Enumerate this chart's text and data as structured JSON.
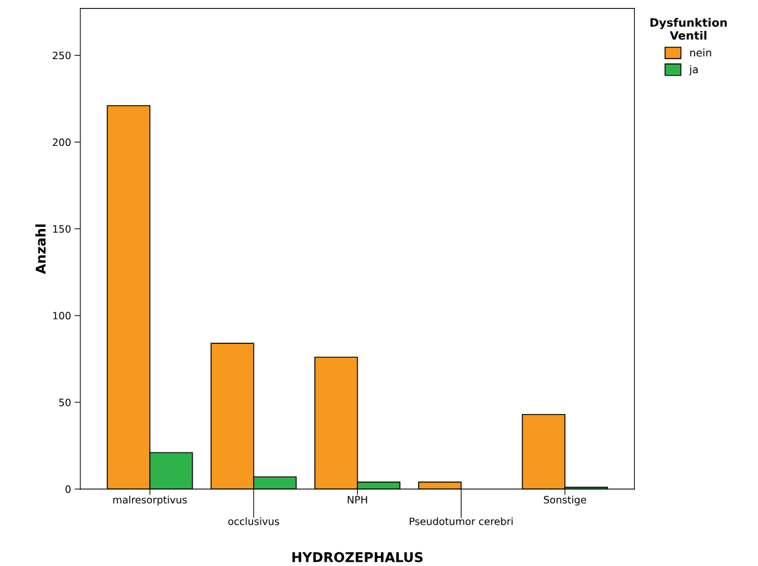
{
  "chart_data": {
    "type": "bar",
    "xlabel": "HYDROZEPHALUS",
    "ylabel": "Anzahl",
    "legend_title": "Dysfunktion\nVentil",
    "categories": [
      "malresorptivus",
      "occlusivus",
      "NPH",
      "Pseudotumor cerebri",
      "Sonstige"
    ],
    "series": [
      {
        "name": "nein",
        "color": "#f7991f",
        "values": [
          221,
          84,
          76,
          4,
          43
        ]
      },
      {
        "name": "ja",
        "color": "#2db34a",
        "values": [
          21,
          7,
          4,
          0,
          1
        ]
      }
    ],
    "ylim": [
      0,
      277
    ],
    "yticks": [
      0,
      50,
      100,
      150,
      200,
      250
    ],
    "grid": false,
    "legend": "right"
  }
}
